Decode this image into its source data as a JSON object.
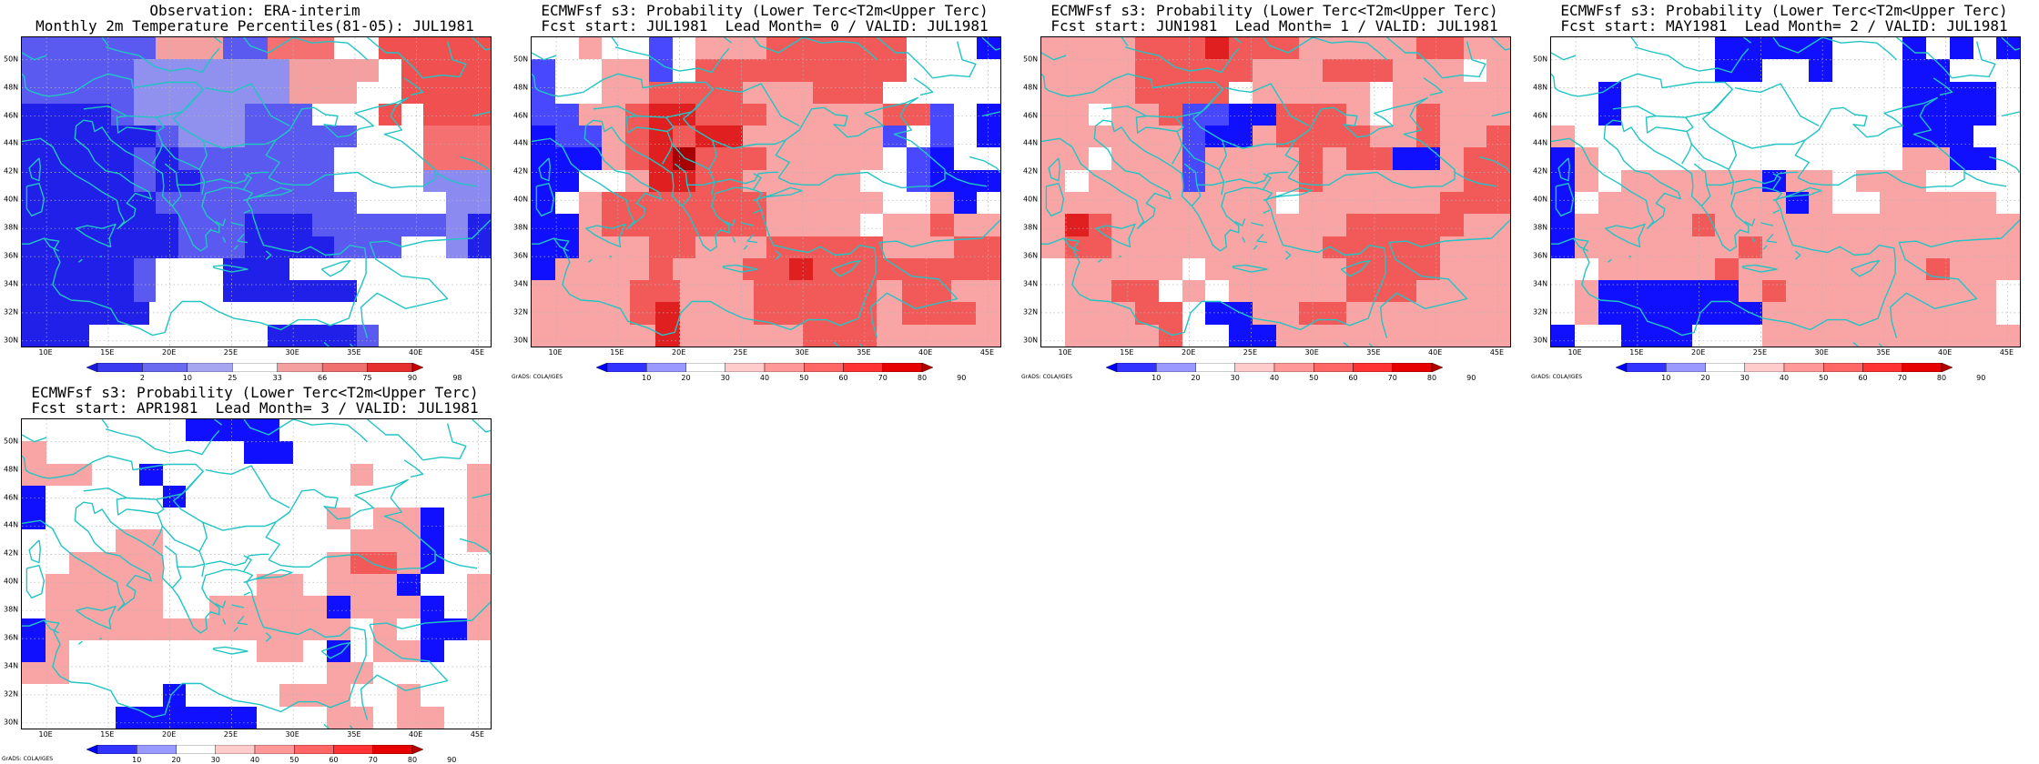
{
  "panels": [
    {
      "title1": "Observation: ERA-interim",
      "title2": "Monthly 2m Temperature Percentiles(81-05): JUL1981",
      "colorbar_labels": [
        "2",
        "10",
        "25",
        "33",
        "66",
        "75",
        "90",
        "98"
      ],
      "colorbar_colors": [
        "#1a1ae6",
        "#3a3af0",
        "#6a6af0",
        "#a6a6f0",
        "#ffffff",
        "#f5a0a0",
        "#f07070",
        "#e63030",
        "#c80000"
      ],
      "credit": "",
      "grid": [
        "222222AAA22BBB00CCCCC",
        "222223333333AAAA0CCCC",
        "222223333333AAA00CCCC",
        "1111233333222000C0CCC",
        "111111233322222000BBB",
        "111112122222220000BBB",
        "111112112222220000DDD",
        "1111112222222220000DD",
        "1111111222111222222D1",
        "1111111222111122200D1",
        "111112000111000000000",
        "111112000111111000000",
        "1111110000000000000000",
        "111000000001111200000"
      ]
    },
    {
      "title1": "ECMWFsf s3: Probability (Lower Terc<T2m<Upper Terc)",
      "title2": "Fcst start: JUL1981  Lead Month= 0 / VALID: JUL1981",
      "colorbar_labels": [
        "10",
        "20",
        "30",
        "40",
        "50",
        "60",
        "70",
        "80",
        "90"
      ],
      "colorbar_colors": [
        "#0000ff",
        "#3333ff",
        "#9999ff",
        "#ffffff",
        "#ffcccc",
        "#ff9999",
        "#ff6666",
        "#ff3333",
        "#e60000",
        "#b40000"
      ],
      "credit": "GrADS: COLA/IGES",
      "grid": [
        "00C00B0CCCDDDDDD000A",
        "B00CCB0DDDDDDDDD0000",
        "B00CCDDDDCCCDDD00000",
        "BBCCDEEDDDCCCCCDDB0A",
        "ABBCDEDEECCCCCCB0B0A",
        "AAACDEFDDDCCCCC0BA00",
        "AA00CEEDDCCCCC00BAAA",
        "A0CDDDDDDDCCCCC00CA0",
        "AACDDDDDDDCCCC0CCDCC",
        "AACCCDDCCCDDDDDCCCDD",
        "ACCCCDCCCDDEDDDDDDDD",
        "CCCCDDCCCDDDDDCDDCC",
        "CCCCDECCCDDDDDCDDDC",
        "CCCCCECCCCCDDDCCCCC"
      ]
    },
    {
      "title1": "ECMWFsf s3: Probability (Lower Terc<T2m<Upper Terc)",
      "title2": "Fcst start: JUN1981  Lead Month= 1 / VALID: JUL1981",
      "colorbar_labels": [
        "10",
        "20",
        "30",
        "40",
        "50",
        "60",
        "70",
        "80",
        "90"
      ],
      "colorbar_colors": [
        "#0000ff",
        "#3333ff",
        "#9999ff",
        "#ffffff",
        "#ffcccc",
        "#ff9999",
        "#ff6666",
        "#ff3333",
        "#e60000",
        "#b40000"
      ],
      "credit": "GrADS: COLA/IGES",
      "grid": [
        "CCCCDDDEDDDCCCCCDDCC",
        "CCCCDDDDDCCCDDDCCC0C",
        "CCCCDDDD0CCCCC0CCCCC",
        "CC0CCDBBAADDDC0CDCCC",
        "CCCCCCBAACDDDDCCDCCD",
        "CC0CCCBCCCCDCDDAACDD",
        "C0CCCCBCCCCDCCCCCCDD",
        "CCCCCCCCCC0CCCCCCDDD",
        "CEDCCCCCCCCCCDDDDDCC",
        "CDDCCCCCCCCCDDDDDCCC",
        "0CCCCC0CCCCCCDDDDCCC",
        "0CCDD0C0CCCCCDDDCCCC",
        "0CCCDD0AACCDDCCCCCCC",
        "0CCCCD00AACCCCCCCCCC"
      ]
    },
    {
      "title1": "ECMWFsf s3: Probability (Lower Terc<T2m<Upper Terc)",
      "title2": "Fcst start: MAY1981  Lead Month= 2 / VALID: JUL1981",
      "colorbar_labels": [
        "10",
        "20",
        "30",
        "40",
        "50",
        "60",
        "70",
        "80",
        "90"
      ],
      "colorbar_colors": [
        "#0000ff",
        "#3333ff",
        "#9999ff",
        "#ffffff",
        "#ffcccc",
        "#ff9999",
        "#ff6666",
        "#ff3333",
        "#e60000",
        "#b40000"
      ],
      "credit": "GrADS: COLA/IGES",
      "grid": [
        "0000000AAAAA000A0A0A",
        "0000000AA00A000AA000",
        "00A000000000000AAAA0",
        "00A000000000000AAAA0",
        "C00000000000000AAA00",
        "AC0000000000000CCAA0",
        "AC0CCCCCCACC0CCC0000",
        "A0CCCCCCCCAC00CCCCC0",
        "ACCCCCDCCCCCCCCCCCCC",
        "ACCCCCCCDCCCCCCCCCCC",
        "00CCCCCDCCCCCCCCDCCC",
        "0CAAAAAACDCCCCCCCCC0",
        "0CAAAAAAACCCCCCCCCC0",
        "A00AAA000CCCCCCCCCCC"
      ]
    },
    {
      "title1": "ECMWFsf s3: Probability (Lower Terc<T2m<Upper Terc)",
      "title2": "Fcst start: APR1981  Lead Month= 3 / VALID: JUL1981",
      "colorbar_labels": [
        "10",
        "20",
        "30",
        "40",
        "50",
        "60",
        "70",
        "80",
        "90"
      ],
      "colorbar_colors": [
        "#0000ff",
        "#3333ff",
        "#9999ff",
        "#ffffff",
        "#ffcccc",
        "#ff9999",
        "#ff6666",
        "#ff3333",
        "#e60000",
        "#b40000"
      ],
      "credit": "GrADS: COLA/IGES",
      "grid": [
        "0000000AAAA000000000",
        "C00000000AA00000000",
        "CCC00A00000000C0000C",
        "A00000A000000000000C",
        "A000000000000C0CCA0C",
        "0000CC00000000CCCA0C",
        "00CCCC0000000CDDCA00",
        "0CCCCC0000CC0CCCA00C",
        "0CCCCC00CCCCCACCCA0C",
        "ACCCCCCCCCCCCC0C0AAC",
        "AC00000000CC0A0CCA00",
        "CC00000000000CC00000",
        "000000A0000CCC00C000",
        "0000AAAAAA000CC0CC00"
      ]
    }
  ],
  "lat_labels": [
    "50N",
    "48N",
    "46N",
    "44N",
    "42N",
    "40N",
    "38N",
    "36N",
    "34N",
    "32N",
    "30N"
  ],
  "lon_labels": [
    "10E",
    "15E",
    "20E",
    "25E",
    "30E",
    "35E",
    "40E",
    "45E"
  ]
}
